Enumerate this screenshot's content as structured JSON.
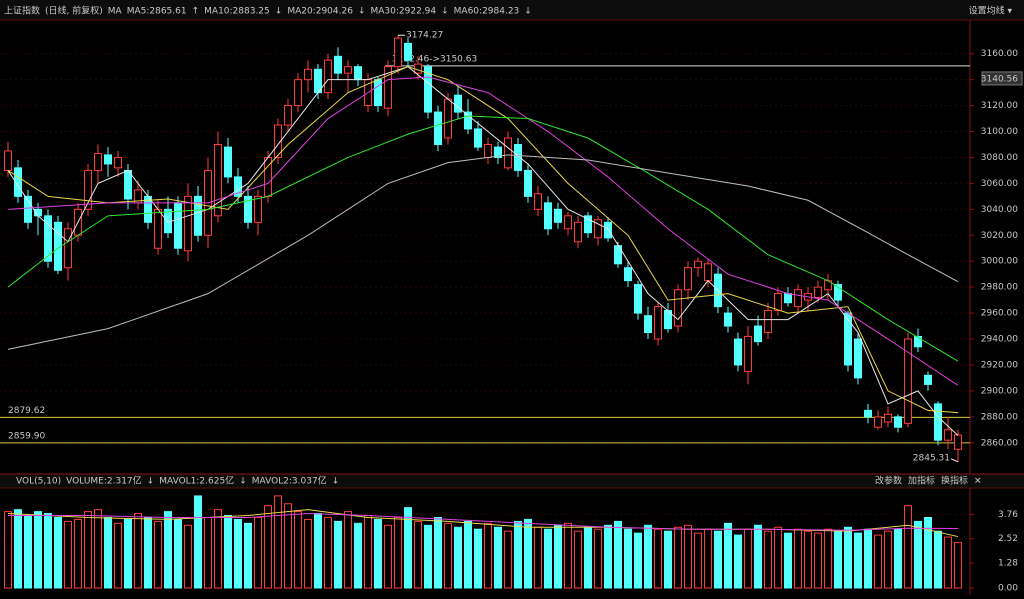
{
  "chart_data": {
    "type": "candlestick",
    "title": "上证指数",
    "subtitle": "(日线, 前复权)",
    "ma_label": "MA",
    "settings": "设置均线 ▾",
    "up_color": "#ff3c3c",
    "down_color": "#54ffff",
    "ylim": [
      2839,
      3186
    ],
    "yticks": [
      {
        "value": 2860,
        "label": "2860.00"
      },
      {
        "value": 2880,
        "label": "2880.00"
      },
      {
        "value": 2900,
        "label": "2900.00"
      },
      {
        "value": 2920,
        "label": "2920.00"
      },
      {
        "value": 2940,
        "label": "2940.00"
      },
      {
        "value": 2960,
        "label": "2960.00"
      },
      {
        "value": 2980,
        "label": "2980.00"
      },
      {
        "value": 3000,
        "label": "3000.00"
      },
      {
        "value": 3020,
        "label": "3020.00"
      },
      {
        "value": 3040,
        "label": "3040.00"
      },
      {
        "value": 3060,
        "label": "3060.00"
      },
      {
        "value": 3080,
        "label": "3080.00"
      },
      {
        "value": 3100,
        "label": "3100.00"
      },
      {
        "value": 3120,
        "label": "3120.00"
      },
      {
        "value": 3140,
        "label": "3140.00"
      },
      {
        "value": 3160,
        "label": "3160.00"
      }
    ],
    "candles": [
      [
        3070,
        3092,
        3065,
        3085
      ],
      [
        3072,
        3078,
        3045,
        3050
      ],
      [
        3050,
        3055,
        3025,
        3030
      ],
      [
        3040,
        3045,
        3020,
        3035
      ],
      [
        3035,
        3040,
        2995,
        3000
      ],
      [
        3030,
        3035,
        2990,
        2993
      ],
      [
        2995,
        3030,
        2985,
        3025
      ],
      [
        3020,
        3045,
        3015,
        3040
      ],
      [
        3040,
        3075,
        3035,
        3070
      ],
      [
        3070,
        3090,
        3060,
        3083
      ],
      [
        3082,
        3088,
        3065,
        3075
      ],
      [
        3072,
        3085,
        3065,
        3080
      ],
      [
        3070,
        3075,
        3040,
        3048
      ],
      [
        3045,
        3062,
        3040,
        3055
      ],
      [
        3050,
        3055,
        3025,
        3030
      ],
      [
        3010,
        3048,
        3005,
        3040
      ],
      [
        3040,
        3050,
        3018,
        3022
      ],
      [
        3045,
        3050,
        3005,
        3010
      ],
      [
        3008,
        3060,
        3000,
        3050
      ],
      [
        3050,
        3058,
        3015,
        3020
      ],
      [
        3020,
        3080,
        3010,
        3070
      ],
      [
        3035,
        3100,
        3030,
        3090
      ],
      [
        3088,
        3095,
        3060,
        3065
      ],
      [
        3065,
        3072,
        3045,
        3050
      ],
      [
        3050,
        3058,
        3025,
        3030
      ],
      [
        3030,
        3055,
        3020,
        3050
      ],
      [
        3050,
        3085,
        3045,
        3080
      ],
      [
        3080,
        3110,
        3075,
        3105
      ],
      [
        3105,
        3125,
        3100,
        3120
      ],
      [
        3120,
        3145,
        3115,
        3140
      ],
      [
        3140,
        3155,
        3130,
        3148
      ],
      [
        3148,
        3152,
        3125,
        3130
      ],
      [
        3130,
        3160,
        3125,
        3155
      ],
      [
        3158,
        3165,
        3140,
        3145
      ],
      [
        3145,
        3155,
        3130,
        3150
      ],
      [
        3150,
        3152,
        3135,
        3140
      ],
      [
        3120,
        3145,
        3115,
        3140
      ],
      [
        3140,
        3142,
        3115,
        3120
      ],
      [
        3118,
        3155,
        3112,
        3150
      ],
      [
        3150,
        3174.27,
        3145,
        3172
      ],
      [
        3168,
        3172,
        3150,
        3155
      ],
      [
        3145,
        3158,
        3140,
        3152
      ],
      [
        3150,
        3152,
        3110,
        3115
      ],
      [
        3115,
        3120,
        3085,
        3090
      ],
      [
        3095,
        3130,
        3090,
        3125
      ],
      [
        3128,
        3135,
        3110,
        3115
      ],
      [
        3115,
        3125,
        3098,
        3102
      ],
      [
        3102,
        3108,
        3085,
        3088
      ],
      [
        3080,
        3095,
        3075,
        3090
      ],
      [
        3088,
        3092,
        3075,
        3080
      ],
      [
        3072,
        3100,
        3070,
        3095
      ],
      [
        3090,
        3095,
        3065,
        3070
      ],
      [
        3070,
        3075,
        3045,
        3050
      ],
      [
        3040,
        3058,
        3035,
        3052
      ],
      [
        3045,
        3050,
        3020,
        3025
      ],
      [
        3040,
        3045,
        3025,
        3030
      ],
      [
        3025,
        3038,
        3020,
        3035
      ],
      [
        3015,
        3035,
        3010,
        3030
      ],
      [
        3035,
        3038,
        3018,
        3022
      ],
      [
        3018,
        3035,
        3012,
        3032
      ],
      [
        3030,
        3034,
        3015,
        3018
      ],
      [
        3012,
        3015,
        2995,
        2998
      ],
      [
        2995,
        3000,
        2980,
        2985
      ],
      [
        2982,
        2985,
        2955,
        2960
      ],
      [
        2958,
        2965,
        2940,
        2945
      ],
      [
        2940,
        2968,
        2935,
        2965
      ],
      [
        2962,
        2968,
        2945,
        2948
      ],
      [
        2950,
        2982,
        2945,
        2978
      ],
      [
        2978,
        3000,
        2970,
        2995
      ],
      [
        2995,
        3003,
        2988,
        3000
      ],
      [
        2985,
        3002,
        2980,
        2998
      ],
      [
        2990,
        2995,
        2960,
        2965
      ],
      [
        2960,
        2965,
        2945,
        2950
      ],
      [
        2940,
        2945,
        2915,
        2920
      ],
      [
        2915,
        2950,
        2905,
        2942
      ],
      [
        2950,
        2958,
        2935,
        2938
      ],
      [
        2945,
        2968,
        2940,
        2962
      ],
      [
        2962,
        2980,
        2958,
        2975
      ],
      [
        2975,
        2980,
        2965,
        2968
      ],
      [
        2965,
        2982,
        2960,
        2978
      ],
      [
        2970,
        2980,
        2962,
        2975
      ],
      [
        2972,
        2985,
        2968,
        2980
      ],
      [
        2978,
        2990,
        2970,
        2985
      ],
      [
        2982,
        2985,
        2965,
        2970
      ],
      [
        2960,
        2962,
        2915,
        2920
      ],
      [
        2940,
        2945,
        2905,
        2910
      ],
      [
        2885,
        2890,
        2875,
        2880
      ],
      [
        2872,
        2885,
        2870,
        2880
      ],
      [
        2876,
        2888,
        2872,
        2882
      ],
      [
        2880,
        2882,
        2868,
        2872
      ],
      [
        2875,
        2945,
        2872,
        2940
      ],
      [
        2942,
        2948,
        2930,
        2934
      ],
      [
        2912,
        2915,
        2900,
        2905
      ],
      [
        2890,
        2892,
        2858,
        2862
      ],
      [
        2862,
        2880,
        2855,
        2870
      ],
      [
        2855,
        2870,
        2845.31,
        2866
      ]
    ],
    "series": [
      {
        "label": "MA5:2865.61",
        "arrow": "↑",
        "color": "#e8e8e8",
        "x": [
          0,
          3,
          6,
          9,
          12,
          16,
          20,
          24,
          28,
          32,
          36,
          40,
          44,
          48,
          52,
          56,
          60,
          64,
          67,
          70,
          74,
          78,
          82,
          85,
          88,
          91,
          93,
          95
        ],
        "values": [
          3070,
          3035,
          3015,
          3060,
          3070,
          3030,
          3040,
          3060,
          3100,
          3140,
          3140,
          3150,
          3125,
          3100,
          3075,
          3040,
          3025,
          2975,
          2955,
          2985,
          2955,
          2955,
          2975,
          2945,
          2890,
          2900,
          2880,
          2865.61
        ]
      },
      {
        "label": "MA10:2883.25",
        "arrow": "↓",
        "color": "#e8d84a",
        "x": [
          0,
          4,
          10,
          16,
          22,
          28,
          34,
          40,
          44,
          50,
          56,
          62,
          66,
          72,
          78,
          84,
          88,
          92,
          95
        ],
        "values": [
          3070,
          3050,
          3045,
          3048,
          3040,
          3090,
          3130,
          3150,
          3140,
          3110,
          3060,
          3020,
          2970,
          2975,
          2960,
          2965,
          2900,
          2885,
          2883.25
        ]
      },
      {
        "label": "MA20:2904.26",
        "arrow": "↓",
        "color": "#e040e0",
        "x": [
          0,
          10,
          20,
          26,
          32,
          38,
          42,
          48,
          54,
          60,
          66,
          72,
          78,
          82,
          88,
          95
        ],
        "values": [
          3040,
          3045,
          3045,
          3060,
          3110,
          3140,
          3142,
          3130,
          3100,
          3065,
          3025,
          2990,
          2975,
          2970,
          2940,
          2904.26
        ]
      },
      {
        "label": "MA30:2922.94",
        "arrow": "↓",
        "color": "#2ee82e",
        "x": [
          0,
          5,
          10,
          20,
          26,
          34,
          40,
          46,
          52,
          58,
          64,
          70,
          76,
          82,
          88,
          95
        ],
        "values": [
          2980,
          3010,
          3035,
          3040,
          3050,
          3080,
          3098,
          3112,
          3110,
          3095,
          3068,
          3040,
          3005,
          2985,
          2955,
          2922.94
        ]
      },
      {
        "label": "MA60:2984.23",
        "arrow": "↓",
        "color": "#bdbdbd",
        "x": [
          0,
          10,
          20,
          30,
          38,
          44,
          50,
          58,
          66,
          74,
          80,
          86,
          90,
          95
        ],
        "values": [
          2932,
          2948,
          2975,
          3020,
          3060,
          3076,
          3082,
          3078,
          3068,
          3058,
          3047,
          3022,
          3005,
          2984.23
        ]
      }
    ],
    "annotations": {
      "high": 3174.27,
      "range_line": {
        "value": 3150.63,
        "label": "3152.46->3150.63"
      },
      "last": 3140.56,
      "low": 2845.31,
      "levels": [
        {
          "value": 2879.62,
          "label": "2879.62"
        },
        {
          "value": 2859.9,
          "label": "2859.90"
        }
      ]
    },
    "volume": {
      "title": "VOL(5,10)",
      "buttons": [
        "改参数",
        "加指标",
        "换指标",
        "✕"
      ],
      "ylim": [
        0,
        4.9
      ],
      "yticks": [
        {
          "value": 0,
          "label": "0.00"
        },
        {
          "value": 1.28,
          "label": "1.28"
        },
        {
          "value": 2.52,
          "label": "2.52"
        },
        {
          "value": 3.76,
          "label": "3.76"
        }
      ],
      "values": [
        3.9,
        4.0,
        3.7,
        3.9,
        3.8,
        3.6,
        3.4,
        3.5,
        3.9,
        4.0,
        3.6,
        3.3,
        3.5,
        3.8,
        3.6,
        3.4,
        3.9,
        3.5,
        3.2,
        4.7,
        3.6,
        4.0,
        3.7,
        3.5,
        3.3,
        3.6,
        4.2,
        4.7,
        4.3,
        3.9,
        3.5,
        3.8,
        3.6,
        3.4,
        3.9,
        3.3,
        3.7,
        3.5,
        3.2,
        3.6,
        4.1,
        3.4,
        3.2,
        3.6,
        3.3,
        3.1,
        3.4,
        3.0,
        3.3,
        3.1,
        2.9,
        3.4,
        3.5,
        3.1,
        3.0,
        3.2,
        3.3,
        2.9,
        3.1,
        3.0,
        3.2,
        3.4,
        3.0,
        2.8,
        3.2,
        3.0,
        2.9,
        3.1,
        3.2,
        2.8,
        3.0,
        2.9,
        3.3,
        2.7,
        3.0,
        3.2,
        2.9,
        3.1,
        2.8,
        3.0,
        2.9,
        2.8,
        3.0,
        2.9,
        3.1,
        2.8,
        3.0,
        2.7,
        2.9,
        3.0,
        4.2,
        3.4,
        3.6,
        2.9,
        2.6,
        2.317
      ],
      "series": [
        {
          "label": "VOLUME:2.317亿",
          "arrow": "↓",
          "color": "#e8e8e8"
        },
        {
          "label": "MAVOL1:2.625亿",
          "arrow": "↓",
          "color": "#e8d84a",
          "x": [
            0,
            8,
            16,
            24,
            30,
            36,
            44,
            52,
            60,
            68,
            76,
            84,
            90,
            95
          ],
          "values": [
            3.8,
            3.6,
            3.5,
            3.7,
            4.0,
            3.6,
            3.4,
            3.1,
            3.1,
            3.0,
            3.0,
            2.9,
            3.2,
            2.625
          ]
        },
        {
          "label": "MAVOL2:3.037亿",
          "arrow": "↓",
          "color": "#e040e0",
          "x": [
            0,
            8,
            16,
            24,
            30,
            36,
            44,
            52,
            60,
            68,
            76,
            84,
            90,
            95
          ],
          "values": [
            3.7,
            3.7,
            3.6,
            3.6,
            3.8,
            3.7,
            3.5,
            3.3,
            3.1,
            3.0,
            3.0,
            2.95,
            3.05,
            3.037
          ]
        }
      ]
    }
  }
}
